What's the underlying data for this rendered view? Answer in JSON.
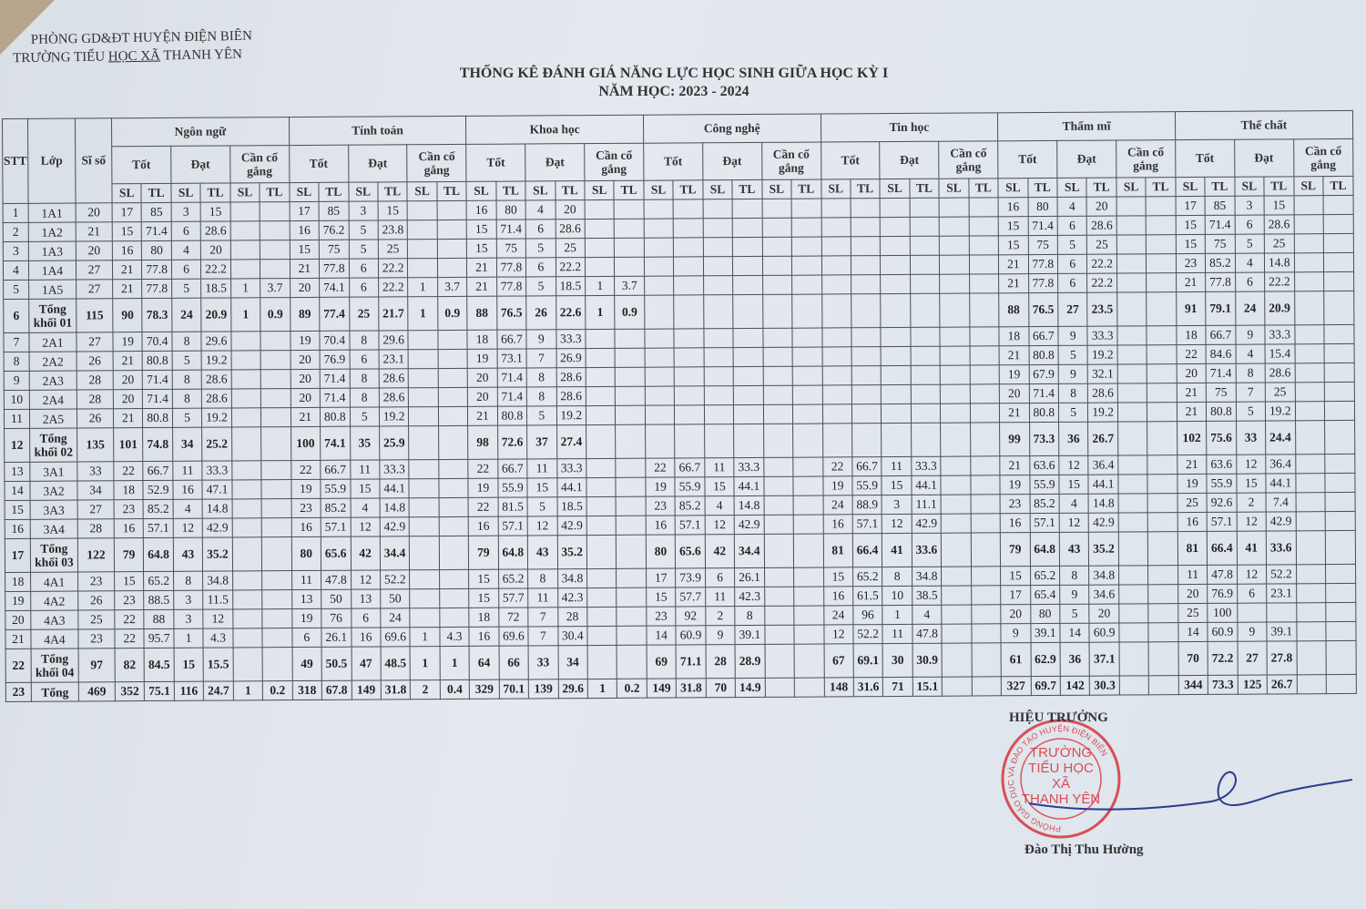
{
  "header": {
    "org_line1": "PHÒNG GD&ĐT HUYỆN ĐIỆN BIÊN",
    "org_line2_prefix": "TRƯỜNG TIỂU ",
    "org_line2_underlined": "HỌC XÃ",
    "org_line2_suffix": " THANH YÊN",
    "title": "THỐNG KÊ ĐÁNH GIÁ NĂNG LỰC HỌC SINH GIỮA HỌC KỲ I",
    "school_year": "NĂM HỌC: 2023 - 2024"
  },
  "table": {
    "col_stt": "STT",
    "col_lop": "Lớp",
    "col_si_so": "Sĩ số",
    "subjects": [
      "Ngôn ngữ",
      "Tính toán",
      "Khoa học",
      "Công nghệ",
      "Tin học",
      "Thẩm mĩ",
      "Thể chất"
    ],
    "levels": [
      "Tốt",
      "Đạt",
      "Cần cố gắng"
    ],
    "sl": "SL",
    "tl": "TL",
    "rows": [
      {
        "stt": "1",
        "lop": "1A1",
        "si_so": "20",
        "v": [
          [
            "17",
            "85",
            "3",
            "15"
          ],
          [
            "17",
            "85",
            "3",
            "15"
          ],
          [
            "16",
            "80",
            "4",
            "20"
          ],
          [],
          [],
          [
            "16",
            "80",
            "4",
            "20"
          ],
          [
            "17",
            "85",
            "3",
            "15"
          ]
        ]
      },
      {
        "stt": "2",
        "lop": "1A2",
        "si_so": "21",
        "v": [
          [
            "15",
            "71.4",
            "6",
            "28.6"
          ],
          [
            "16",
            "76.2",
            "5",
            "23.8"
          ],
          [
            "15",
            "71.4",
            "6",
            "28.6"
          ],
          [],
          [],
          [
            "15",
            "71.4",
            "6",
            "28.6"
          ],
          [
            "15",
            "71.4",
            "6",
            "28.6"
          ]
        ]
      },
      {
        "stt": "3",
        "lop": "1A3",
        "si_so": "20",
        "v": [
          [
            "16",
            "80",
            "4",
            "20"
          ],
          [
            "15",
            "75",
            "5",
            "25"
          ],
          [
            "15",
            "75",
            "5",
            "25"
          ],
          [],
          [],
          [
            "15",
            "75",
            "5",
            "25"
          ],
          [
            "15",
            "75",
            "5",
            "25"
          ]
        ]
      },
      {
        "stt": "4",
        "lop": "1A4",
        "si_so": "27",
        "v": [
          [
            "21",
            "77.8",
            "6",
            "22.2"
          ],
          [
            "21",
            "77.8",
            "6",
            "22.2"
          ],
          [
            "21",
            "77.8",
            "6",
            "22.2"
          ],
          [],
          [],
          [
            "21",
            "77.8",
            "6",
            "22.2"
          ],
          [
            "23",
            "85.2",
            "4",
            "14.8"
          ]
        ]
      },
      {
        "stt": "5",
        "lop": "1A5",
        "si_so": "27",
        "v": [
          [
            "21",
            "77.8",
            "5",
            "18.5",
            "1",
            "3.7"
          ],
          [
            "20",
            "74.1",
            "6",
            "22.2",
            "1",
            "3.7"
          ],
          [
            "21",
            "77.8",
            "5",
            "18.5",
            "1",
            "3.7"
          ],
          [],
          [],
          [
            "21",
            "77.8",
            "6",
            "22.2"
          ],
          [
            "21",
            "77.8",
            "6",
            "22.2"
          ]
        ]
      },
      {
        "stt": "6",
        "lop": "Tổng khối 01",
        "si_so": "115",
        "v": [
          [
            "90",
            "78.3",
            "24",
            "20.9",
            "1",
            "0.9"
          ],
          [
            "89",
            "77.4",
            "25",
            "21.7",
            "1",
            "0.9"
          ],
          [
            "88",
            "76.5",
            "26",
            "22.6",
            "1",
            "0.9"
          ],
          [],
          [],
          [
            "88",
            "76.5",
            "27",
            "23.5"
          ],
          [
            "91",
            "79.1",
            "24",
            "20.9"
          ]
        ]
      },
      {
        "stt": "7",
        "lop": "2A1",
        "si_so": "27",
        "v": [
          [
            "19",
            "70.4",
            "8",
            "29.6"
          ],
          [
            "19",
            "70.4",
            "8",
            "29.6"
          ],
          [
            "18",
            "66.7",
            "9",
            "33.3"
          ],
          [],
          [],
          [
            "18",
            "66.7",
            "9",
            "33.3"
          ],
          [
            "18",
            "66.7",
            "9",
            "33.3"
          ]
        ]
      },
      {
        "stt": "8",
        "lop": "2A2",
        "si_so": "26",
        "v": [
          [
            "21",
            "80.8",
            "5",
            "19.2"
          ],
          [
            "20",
            "76.9",
            "6",
            "23.1"
          ],
          [
            "19",
            "73.1",
            "7",
            "26.9"
          ],
          [],
          [],
          [
            "21",
            "80.8",
            "5",
            "19.2"
          ],
          [
            "22",
            "84.6",
            "4",
            "15.4"
          ]
        ]
      },
      {
        "stt": "9",
        "lop": "2A3",
        "si_so": "28",
        "v": [
          [
            "20",
            "71.4",
            "8",
            "28.6"
          ],
          [
            "20",
            "71.4",
            "8",
            "28.6"
          ],
          [
            "20",
            "71.4",
            "8",
            "28.6"
          ],
          [],
          [],
          [
            "19",
            "67.9",
            "9",
            "32.1"
          ],
          [
            "20",
            "71.4",
            "8",
            "28.6"
          ]
        ]
      },
      {
        "stt": "10",
        "lop": "2A4",
        "si_so": "28",
        "v": [
          [
            "20",
            "71.4",
            "8",
            "28.6"
          ],
          [
            "20",
            "71.4",
            "8",
            "28.6"
          ],
          [
            "20",
            "71.4",
            "8",
            "28.6"
          ],
          [],
          [],
          [
            "20",
            "71.4",
            "8",
            "28.6"
          ],
          [
            "21",
            "75",
            "7",
            "25"
          ]
        ]
      },
      {
        "stt": "11",
        "lop": "2A5",
        "si_so": "26",
        "v": [
          [
            "21",
            "80.8",
            "5",
            "19.2"
          ],
          [
            "21",
            "80.8",
            "5",
            "19.2"
          ],
          [
            "21",
            "80.8",
            "5",
            "19.2"
          ],
          [],
          [],
          [
            "21",
            "80.8",
            "5",
            "19.2"
          ],
          [
            "21",
            "80.8",
            "5",
            "19.2"
          ]
        ]
      },
      {
        "stt": "12",
        "lop": "Tổng khối 02",
        "si_so": "135",
        "v": [
          [
            "101",
            "74.8",
            "34",
            "25.2"
          ],
          [
            "100",
            "74.1",
            "35",
            "25.9"
          ],
          [
            "98",
            "72.6",
            "37",
            "27.4"
          ],
          [],
          [],
          [
            "99",
            "73.3",
            "36",
            "26.7"
          ],
          [
            "102",
            "75.6",
            "33",
            "24.4"
          ]
        ]
      },
      {
        "stt": "13",
        "lop": "3A1",
        "si_so": "33",
        "v": [
          [
            "22",
            "66.7",
            "11",
            "33.3"
          ],
          [
            "22",
            "66.7",
            "11",
            "33.3"
          ],
          [
            "22",
            "66.7",
            "11",
            "33.3"
          ],
          [
            "22",
            "66.7",
            "11",
            "33.3"
          ],
          [
            "22",
            "66.7",
            "11",
            "33.3"
          ],
          [
            "21",
            "63.6",
            "12",
            "36.4"
          ],
          [
            "21",
            "63.6",
            "12",
            "36.4"
          ]
        ]
      },
      {
        "stt": "14",
        "lop": "3A2",
        "si_so": "34",
        "v": [
          [
            "18",
            "52.9",
            "16",
            "47.1"
          ],
          [
            "19",
            "55.9",
            "15",
            "44.1"
          ],
          [
            "19",
            "55.9",
            "15",
            "44.1"
          ],
          [
            "19",
            "55.9",
            "15",
            "44.1"
          ],
          [
            "19",
            "55.9",
            "15",
            "44.1"
          ],
          [
            "19",
            "55.9",
            "15",
            "44.1"
          ],
          [
            "19",
            "55.9",
            "15",
            "44.1"
          ]
        ]
      },
      {
        "stt": "15",
        "lop": "3A3",
        "si_so": "27",
        "v": [
          [
            "23",
            "85.2",
            "4",
            "14.8"
          ],
          [
            "23",
            "85.2",
            "4",
            "14.8"
          ],
          [
            "22",
            "81.5",
            "5",
            "18.5"
          ],
          [
            "23",
            "85.2",
            "4",
            "14.8"
          ],
          [
            "24",
            "88.9",
            "3",
            "11.1"
          ],
          [
            "23",
            "85.2",
            "4",
            "14.8"
          ],
          [
            "25",
            "92.6",
            "2",
            "7.4"
          ]
        ]
      },
      {
        "stt": "16",
        "lop": "3A4",
        "si_so": "28",
        "v": [
          [
            "16",
            "57.1",
            "12",
            "42.9"
          ],
          [
            "16",
            "57.1",
            "12",
            "42.9"
          ],
          [
            "16",
            "57.1",
            "12",
            "42.9"
          ],
          [
            "16",
            "57.1",
            "12",
            "42.9"
          ],
          [
            "16",
            "57.1",
            "12",
            "42.9"
          ],
          [
            "16",
            "57.1",
            "12",
            "42.9"
          ],
          [
            "16",
            "57.1",
            "12",
            "42.9"
          ]
        ]
      },
      {
        "stt": "17",
        "lop": "Tổng khối 03",
        "si_so": "122",
        "v": [
          [
            "79",
            "64.8",
            "43",
            "35.2"
          ],
          [
            "80",
            "65.6",
            "42",
            "34.4"
          ],
          [
            "79",
            "64.8",
            "43",
            "35.2"
          ],
          [
            "80",
            "65.6",
            "42",
            "34.4"
          ],
          [
            "81",
            "66.4",
            "41",
            "33.6"
          ],
          [
            "79",
            "64.8",
            "43",
            "35.2"
          ],
          [
            "81",
            "66.4",
            "41",
            "33.6"
          ]
        ]
      },
      {
        "stt": "18",
        "lop": "4A1",
        "si_so": "23",
        "v": [
          [
            "15",
            "65.2",
            "8",
            "34.8"
          ],
          [
            "11",
            "47.8",
            "12",
            "52.2"
          ],
          [
            "15",
            "65.2",
            "8",
            "34.8"
          ],
          [
            "17",
            "73.9",
            "6",
            "26.1"
          ],
          [
            "15",
            "65.2",
            "8",
            "34.8"
          ],
          [
            "15",
            "65.2",
            "8",
            "34.8"
          ],
          [
            "11",
            "47.8",
            "12",
            "52.2"
          ]
        ]
      },
      {
        "stt": "19",
        "lop": "4A2",
        "si_so": "26",
        "v": [
          [
            "23",
            "88.5",
            "3",
            "11.5"
          ],
          [
            "13",
            "50",
            "13",
            "50"
          ],
          [
            "15",
            "57.7",
            "11",
            "42.3"
          ],
          [
            "15",
            "57.7",
            "11",
            "42.3"
          ],
          [
            "16",
            "61.5",
            "10",
            "38.5"
          ],
          [
            "17",
            "65.4",
            "9",
            "34.6"
          ],
          [
            "20",
            "76.9",
            "6",
            "23.1"
          ]
        ]
      },
      {
        "stt": "20",
        "lop": "4A3",
        "si_so": "25",
        "v": [
          [
            "22",
            "88",
            "3",
            "12"
          ],
          [
            "19",
            "76",
            "6",
            "24"
          ],
          [
            "18",
            "72",
            "7",
            "28"
          ],
          [
            "23",
            "92",
            "2",
            "8"
          ],
          [
            "24",
            "96",
            "1",
            "4"
          ],
          [
            "20",
            "80",
            "5",
            "20"
          ],
          [
            "25",
            "100"
          ]
        ]
      },
      {
        "stt": "21",
        "lop": "4A4",
        "si_so": "23",
        "v": [
          [
            "22",
            "95.7",
            "1",
            "4.3"
          ],
          [
            "6",
            "26.1",
            "16",
            "69.6",
            "1",
            "4.3"
          ],
          [
            "16",
            "69.6",
            "7",
            "30.4"
          ],
          [
            "14",
            "60.9",
            "9",
            "39.1"
          ],
          [
            "12",
            "52.2",
            "11",
            "47.8"
          ],
          [
            "9",
            "39.1",
            "14",
            "60.9"
          ],
          [
            "14",
            "60.9",
            "9",
            "39.1"
          ]
        ]
      },
      {
        "stt": "22",
        "lop": "Tổng khối 04",
        "si_so": "97",
        "v": [
          [
            "82",
            "84.5",
            "15",
            "15.5"
          ],
          [
            "49",
            "50.5",
            "47",
            "48.5",
            "1",
            "1"
          ],
          [
            "64",
            "66",
            "33",
            "34"
          ],
          [
            "69",
            "71.1",
            "28",
            "28.9"
          ],
          [
            "67",
            "69.1",
            "30",
            "30.9"
          ],
          [
            "61",
            "62.9",
            "36",
            "37.1"
          ],
          [
            "70",
            "72.2",
            "27",
            "27.8"
          ]
        ]
      },
      {
        "stt": "23",
        "lop": "Tổng",
        "si_so": "469",
        "v": [
          [
            "352",
            "75.1",
            "116",
            "24.7",
            "1",
            "0.2"
          ],
          [
            "318",
            "67.8",
            "149",
            "31.8",
            "2",
            "0.4"
          ],
          [
            "329",
            "70.1",
            "139",
            "29.6",
            "1",
            "0.2"
          ],
          [
            "149",
            "31.8",
            "70",
            "14.9"
          ],
          [
            "148",
            "31.6",
            "71",
            "15.1"
          ],
          [
            "327",
            "69.7",
            "142",
            "30.3"
          ],
          [
            "344",
            "73.3",
            "125",
            "26.7"
          ]
        ]
      }
    ]
  },
  "signature": {
    "role": "HIỆU TRƯỞNG",
    "name": "Đào Thị Thu Hường",
    "stamp_ring": "PHÒNG GIÁO DỤC VÀ ĐÀO TẠO HUYỆN ĐIỆN BIÊN",
    "stamp_center": [
      "TRƯỜNG",
      "TIỂU HỌC",
      "XÃ",
      "THANH YÊN"
    ],
    "stamp_color": "#d8323c"
  }
}
